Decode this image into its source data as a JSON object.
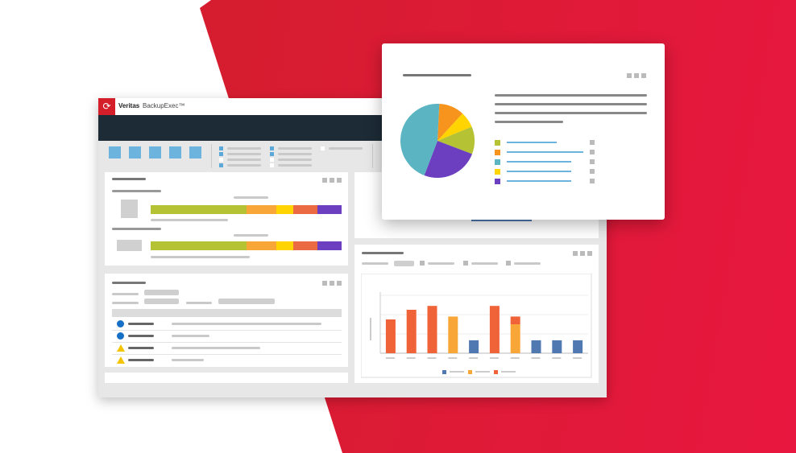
{
  "app": {
    "brand": "Veritas",
    "product": "BackupExec™"
  },
  "colors": {
    "accent": "#d41f2b",
    "header_dark": "#1c2b36",
    "toolbar_tile": "#6cb4dd"
  },
  "status_rows": [
    {
      "icon": "info-circle-icon",
      "color": "#1670c6"
    },
    {
      "icon": "info-circle-icon",
      "color": "#1670c6"
    },
    {
      "icon": "warning-triangle-icon",
      "color": "#f5c400"
    },
    {
      "icon": "warning-triangle-icon",
      "color": "#f5c400"
    }
  ],
  "progress_bars": [
    {
      "segments": [
        {
          "color": "#b5c234",
          "value": 50
        },
        {
          "color": "#f7a637",
          "value": 16
        },
        {
          "color": "#ffd400",
          "value": 8.5
        },
        {
          "color": "#ec6a42",
          "value": 13
        },
        {
          "color": "#6b3fbf",
          "value": 12.5
        }
      ]
    },
    {
      "segments": [
        {
          "color": "#b5c234",
          "value": 50
        },
        {
          "color": "#f7a637",
          "value": 16
        },
        {
          "color": "#ffd400",
          "value": 8.5
        },
        {
          "color": "#ec6a42",
          "value": 13
        },
        {
          "color": "#6b3fbf",
          "value": 12.5
        }
      ]
    }
  ],
  "chart_data": [
    {
      "type": "pie",
      "slices": [
        {
          "color": "#f7941d",
          "value": 11
        },
        {
          "color": "#ffd400",
          "value": 7
        },
        {
          "color": "#b5c234",
          "value": 12
        },
        {
          "color": "#6b3fbf",
          "value": 25
        },
        {
          "color": "#5ab4c2",
          "value": 45
        }
      ],
      "legend_placement": "right"
    },
    {
      "type": "bar",
      "stacked": true,
      "grid": true,
      "ylim": [
        0,
        3
      ],
      "categories_count": 10,
      "series": [
        {
          "color": "#4f79b0",
          "values": [
            0,
            0,
            0,
            0,
            0.67,
            0,
            0,
            0.67,
            0.67,
            0.67
          ]
        },
        {
          "color": "#f7a637",
          "values": [
            0,
            0,
            0,
            1.9,
            0,
            0,
            1.5,
            0,
            0,
            0
          ]
        },
        {
          "color": "#f06237",
          "values": [
            1.75,
            2.25,
            2.45,
            0,
            0,
            2.45,
            0.4,
            0,
            0,
            0
          ]
        }
      ],
      "legend_placement": "bottom"
    }
  ]
}
